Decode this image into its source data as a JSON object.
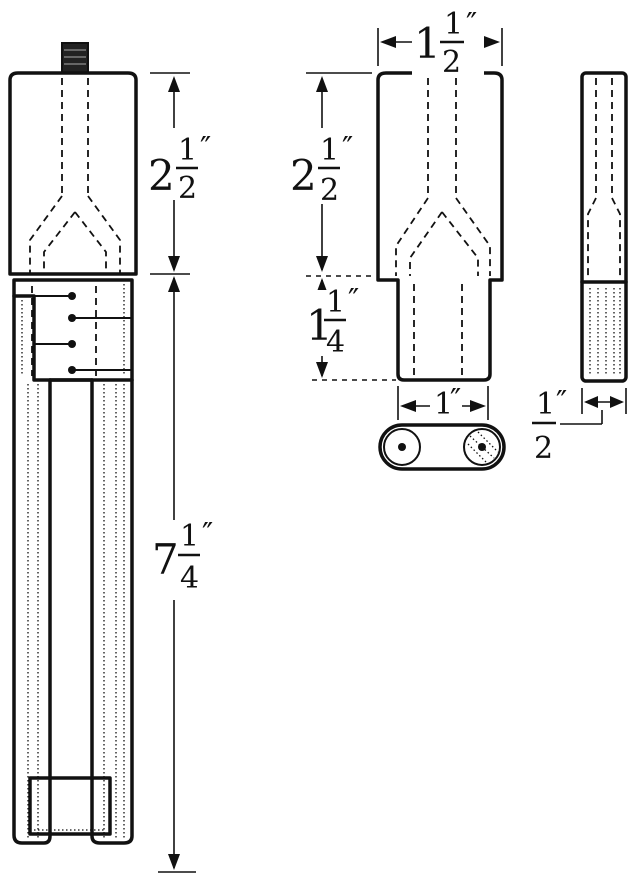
{
  "dimensions": {
    "tube_top_height": {
      "whole": "2",
      "numerator": "1",
      "denominator": "2",
      "prime": "″"
    },
    "tube_bottom_height": {
      "whole": "7",
      "numerator": "1",
      "denominator": "4",
      "prime": "″"
    },
    "block_width": {
      "whole": "1",
      "numerator": "1",
      "denominator": "2",
      "prime": "″"
    },
    "block_top_height": {
      "whole": "2",
      "numerator": "1",
      "denominator": "2",
      "prime": "″"
    },
    "block_neck_height": {
      "whole": "1",
      "numerator": "1",
      "denominator": "4",
      "prime": "″"
    },
    "neck_width": {
      "whole": "1",
      "prime": "″"
    },
    "side_thickness": {
      "numerator": "1",
      "denominator": "2",
      "prime": "″"
    }
  },
  "colors": {
    "ink": "#111111",
    "paper": "#ffffff"
  }
}
